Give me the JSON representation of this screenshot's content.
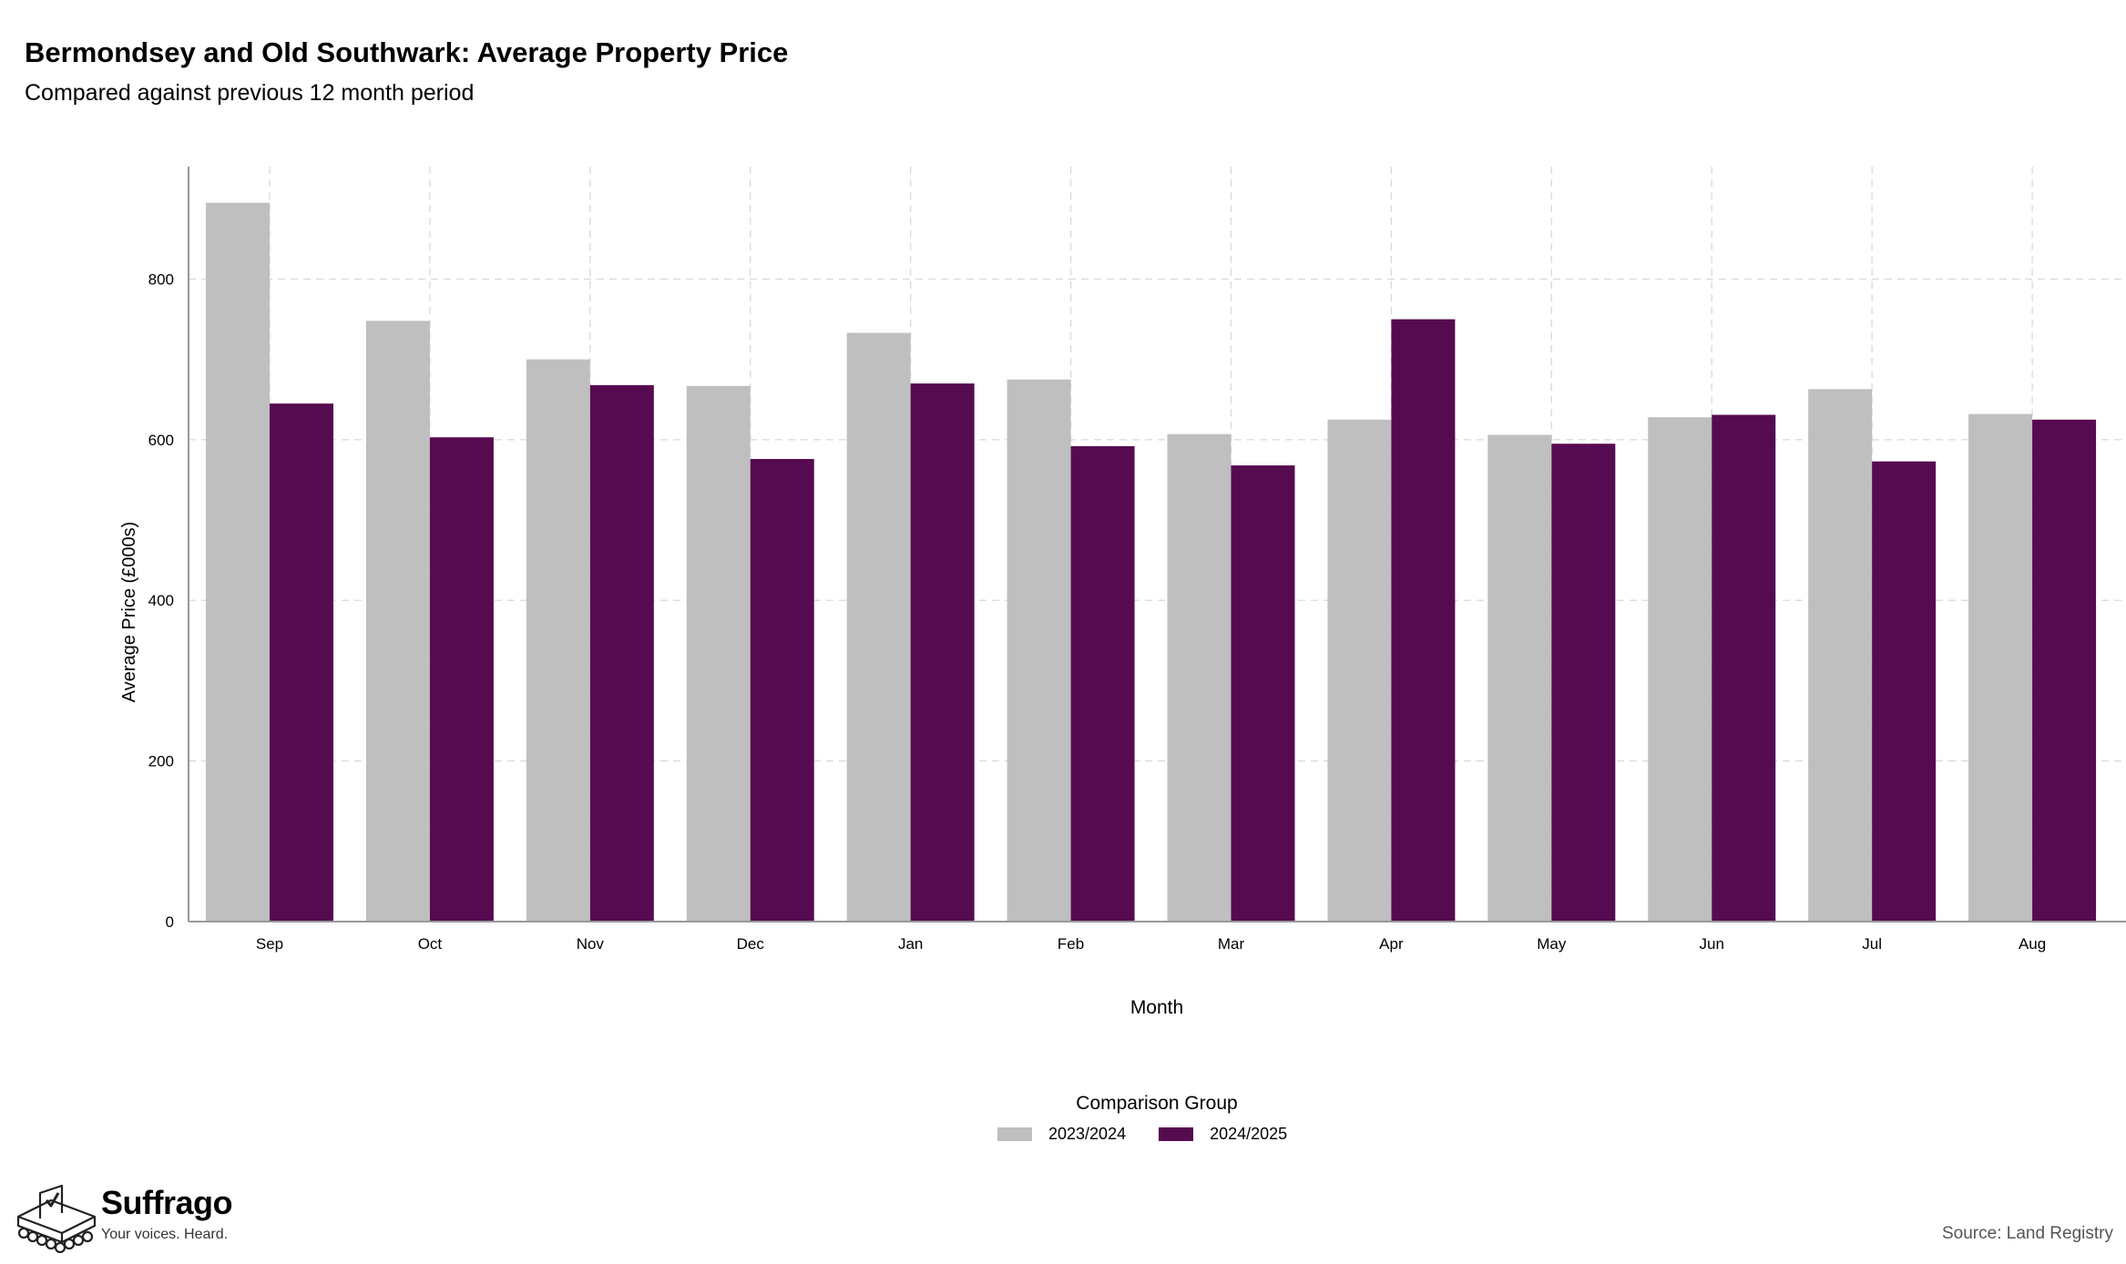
{
  "header": {
    "title": "Bermondsey and Old Southwark: Average Property Price",
    "subtitle": "Compared against previous 12 month period"
  },
  "chart_data": {
    "type": "bar",
    "title": "Bermondsey and Old Southwark: Average Property Price",
    "subtitle": "Compared against previous 12 month period",
    "xlabel": "Month",
    "ylabel": "Average Price (£000s)",
    "categories": [
      "Sep",
      "Oct",
      "Nov",
      "Dec",
      "Jan",
      "Feb",
      "Mar",
      "Apr",
      "May",
      "Jun",
      "Jul",
      "Aug"
    ],
    "series": [
      {
        "name": "2023/2024",
        "color": "#bfbfbf",
        "values": [
          895,
          748,
          700,
          667,
          733,
          675,
          607,
          625,
          606,
          628,
          663,
          632
        ]
      },
      {
        "name": "2024/2025",
        "color": "#560b50",
        "values": [
          645,
          603,
          668,
          576,
          670,
          592,
          568,
          750,
          595,
          631,
          573,
          625
        ]
      }
    ],
    "ylim": [
      0,
      940
    ],
    "yticks": [
      0,
      200,
      400,
      600,
      800
    ],
    "grid": true,
    "legend_title": "Comparison Group",
    "legend_position": "bottom"
  },
  "branding": {
    "logo_name": "Suffrago",
    "logo_tagline": "Your voices. Heard.",
    "logo_icon": "ballot-box-icon"
  },
  "footer": {
    "source": "Source: Land Registry"
  }
}
